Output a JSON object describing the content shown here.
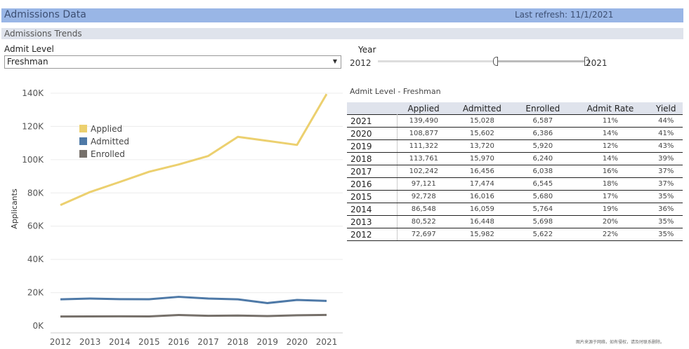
{
  "header": {
    "title": "Admissions Data",
    "last_refresh": "Last refresh: 11/1/2021"
  },
  "subheader": {
    "title": "Admissions Trends"
  },
  "filters": {
    "admit_level_label": "Admit Level",
    "admit_level_value": "Freshman",
    "year_label": "Year",
    "year_min": "2012",
    "year_max": "2021"
  },
  "colors": {
    "applied": "#ecd06f",
    "admitted": "#4e79a7",
    "enrolled": "#76706a",
    "header_bar": "#99b6e6"
  },
  "table": {
    "title": "Admit Level - Freshman",
    "headers": [
      "",
      "Applied",
      "Admitted",
      "Enrolled",
      "Admit Rate",
      "Yield"
    ],
    "rows": [
      [
        "2021",
        "139,490",
        "15,028",
        "6,587",
        "11%",
        "44%"
      ],
      [
        "2020",
        "108,877",
        "15,602",
        "6,386",
        "14%",
        "41%"
      ],
      [
        "2019",
        "111,322",
        "13,720",
        "5,920",
        "12%",
        "43%"
      ],
      [
        "2018",
        "113,761",
        "15,970",
        "6,240",
        "14%",
        "39%"
      ],
      [
        "2017",
        "102,242",
        "16,456",
        "6,038",
        "16%",
        "37%"
      ],
      [
        "2016",
        "97,121",
        "17,474",
        "6,545",
        "18%",
        "37%"
      ],
      [
        "2015",
        "92,728",
        "16,016",
        "5,680",
        "17%",
        "35%"
      ],
      [
        "2014",
        "86,548",
        "16,059",
        "5,764",
        "19%",
        "36%"
      ],
      [
        "2013",
        "80,522",
        "16,448",
        "5,698",
        "20%",
        "35%"
      ],
      [
        "2012",
        "72,697",
        "15,982",
        "5,622",
        "22%",
        "35%"
      ]
    ]
  },
  "chart_data": {
    "type": "line",
    "title": "",
    "xlabel": "",
    "ylabel": "Applicants",
    "x": [
      "2012",
      "2013",
      "2014",
      "2015",
      "2016",
      "2017",
      "2018",
      "2019",
      "2020",
      "2021"
    ],
    "yticks": [
      "0K",
      "20K",
      "40K",
      "60K",
      "80K",
      "100K",
      "120K",
      "140K"
    ],
    "ylim": [
      0,
      140000
    ],
    "grid": true,
    "legend": "top-left",
    "series": [
      {
        "name": "Applied",
        "values": [
          72697,
          80522,
          86548,
          92728,
          97121,
          102242,
          113761,
          111322,
          108877,
          139490
        ]
      },
      {
        "name": "Admitted",
        "values": [
          15982,
          16448,
          16059,
          16016,
          17474,
          16456,
          15970,
          13720,
          15602,
          15028
        ]
      },
      {
        "name": "Enrolled",
        "values": [
          5622,
          5698,
          5764,
          5680,
          6545,
          6038,
          6240,
          5920,
          6386,
          6587
        ]
      }
    ]
  },
  "footer": {
    "watermark": "图片来源于网络，如有侵权，请及时联系删除。"
  }
}
